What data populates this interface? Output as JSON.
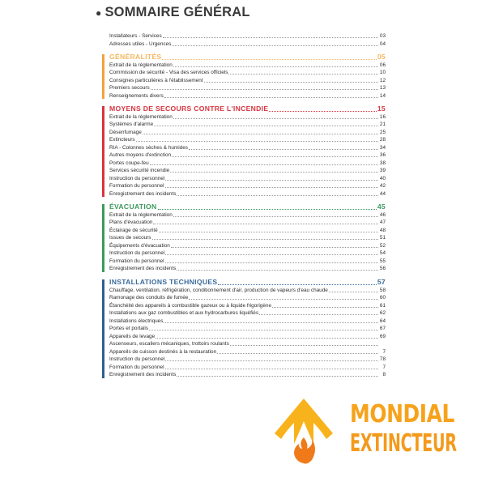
{
  "title": "SOMMAIRE GÉNÉRAL",
  "sections": [
    {
      "key": "intro",
      "color": "",
      "rows": [
        {
          "label": "Installateurs - Services",
          "page": "03"
        },
        {
          "label": "Adresses utiles - Urgences",
          "page": "04"
        }
      ]
    },
    {
      "key": "generalites",
      "color": "#f2a23a",
      "headColor": "#f5b75e",
      "heading": {
        "label": "GÉNÉRALITÉS",
        "page": "05"
      },
      "rows": [
        {
          "label": "Extrait de la réglementation",
          "page": "06"
        },
        {
          "label": "Commission de sécurité - Visa des services officiels",
          "page": "10"
        },
        {
          "label": "Consignes particulières à l'établissement",
          "page": "12"
        },
        {
          "label": "Premiers secours",
          "page": "13"
        },
        {
          "label": "Renseignements divers",
          "page": "14"
        }
      ]
    },
    {
      "key": "moyens",
      "color": "#d8343f",
      "headColor": "#d8343f",
      "heading": {
        "label": "MOYENS DE SECOURS CONTRE L'INCENDIE",
        "page": "15"
      },
      "rows": [
        {
          "label": "Extrait de la réglementation",
          "page": "16"
        },
        {
          "label": "Systèmes d'alarme",
          "page": "21"
        },
        {
          "label": "Désenfumage",
          "page": "25"
        },
        {
          "label": "Extincteurs",
          "page": "28"
        },
        {
          "label": "RIA - Colonnes sèches & humides",
          "page": "34"
        },
        {
          "label": "Autres moyens d'extinction",
          "page": "36"
        },
        {
          "label": "Portes coupe-feu",
          "page": "38"
        },
        {
          "label": "Services sécurité incendie",
          "page": "39"
        },
        {
          "label": "Instruction du personnel",
          "page": "40"
        },
        {
          "label": "Formation du personnel",
          "page": "42"
        },
        {
          "label": "Enregistrement des incidents",
          "page": "44"
        }
      ]
    },
    {
      "key": "evacuation",
      "color": "#3d9a5c",
      "headColor": "#3d9a5c",
      "heading": {
        "label": "ÉVACUATION",
        "page": "45"
      },
      "rows": [
        {
          "label": "Extrait de la réglementation",
          "page": "46"
        },
        {
          "label": "Plans d'évacuation",
          "page": "47"
        },
        {
          "label": "Éclairage de sécurité",
          "page": "48"
        },
        {
          "label": "Issues de secours",
          "page": "51"
        },
        {
          "label": "Équipements d'évacuation",
          "page": "52"
        },
        {
          "label": "Instruction du personnel",
          "page": "54"
        },
        {
          "label": "Formation du personnel",
          "page": "55"
        },
        {
          "label": "Enregistrement des incidents",
          "page": "56"
        }
      ]
    },
    {
      "key": "installations",
      "color": "#2f5e8e",
      "headColor": "#3a6a9a",
      "heading": {
        "label": "INSTALLATIONS TECHNIQUES",
        "page": "57"
      },
      "rows": [
        {
          "label": "Chauffage, ventilation, réfrigération, conditionnement d'air, production de vapeurs d'eau chaude",
          "page": "58"
        },
        {
          "label": "Ramonage des conduits de fumée",
          "page": "60"
        },
        {
          "label": "Étanchéité des appareils à combustible gazeux ou à liquide frigorigène",
          "page": "61"
        },
        {
          "label": "Installations aux gaz combustibles et aux hydrocarbures liquéfiés",
          "page": "62"
        },
        {
          "label": "Installations électriques",
          "page": "64"
        },
        {
          "label": "Portes et portails",
          "page": "67"
        },
        {
          "label": "Appareils de levage",
          "page": "69"
        },
        {
          "label": "Ascenseurs, escaliers mécaniques, trottoirs roulants",
          "page": ""
        },
        {
          "label": "Appareils de cuisson destinés à la restauration",
          "page": "7"
        },
        {
          "label": "Instruction du personnel",
          "page": "78"
        },
        {
          "label": "Formation du personnel",
          "page": "7"
        },
        {
          "label": "Enregistrement des incidents",
          "page": "8"
        }
      ]
    }
  ],
  "watermark": {
    "line1": "MONDIAL",
    "line2": "EXTINCTEUR",
    "color": "#f7a21b",
    "flame_color": "#f07a1a",
    "icon": "flame-logo-icon"
  }
}
